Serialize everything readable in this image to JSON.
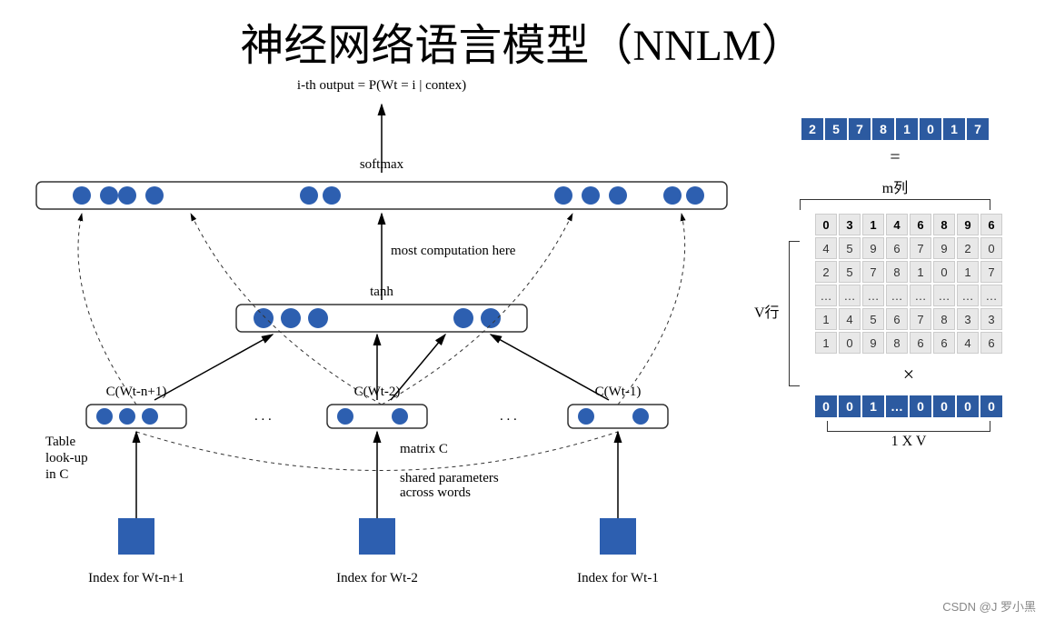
{
  "title": "神经网络语言模型（NNLM）",
  "diagram": {
    "output_label": "i-th output = P(Wt = i | contex)",
    "softmax_label": "softmax",
    "computation_label": "most computation here",
    "tanh_label": "tanh",
    "c_labels": [
      "C(Wt-n+1)",
      "C(Wt-2)",
      "C(Wt-1)"
    ],
    "lookup_label": "Table\nlook-up\nin C",
    "matrix_c_label": "matrix C",
    "shared_params_label": "shared parameters\nacross words",
    "index_labels": [
      "Index for Wt-n+1",
      "Index for Wt-2",
      "Index for Wt-1"
    ],
    "colors": {
      "node": "#2d5fb0",
      "box_fill": "#2d5fb0",
      "outline": "#333333",
      "arrow": "#000000"
    },
    "softmax_neurons": [
      50,
      80,
      100,
      130,
      300,
      325,
      580,
      610,
      640,
      700,
      725
    ],
    "tanh_neurons": [
      30,
      60,
      90,
      250,
      280
    ],
    "c_neurons": [
      [
        20,
        45,
        70
      ],
      [
        20,
        80
      ],
      [
        20,
        80
      ]
    ],
    "c_box_width": 110,
    "tanh_box_width": 320,
    "softmax_box_width": 760
  },
  "side": {
    "result_vector": [
      "2",
      "5",
      "7",
      "8",
      "1",
      "0",
      "1",
      "7"
    ],
    "eq_sign": "=",
    "m_label": "m列",
    "v_label": "V行",
    "matrix_rows": [
      {
        "bold": true,
        "cells": [
          "0",
          "3",
          "1",
          "4",
          "6",
          "8",
          "9",
          "6"
        ]
      },
      {
        "bold": false,
        "cells": [
          "4",
          "5",
          "9",
          "6",
          "7",
          "9",
          "2",
          "0"
        ]
      },
      {
        "bold": false,
        "cells": [
          "2",
          "5",
          "7",
          "8",
          "1",
          "0",
          "1",
          "7"
        ]
      },
      {
        "bold": false,
        "cells": [
          "…",
          "…",
          "…",
          "…",
          "…",
          "…",
          "…",
          "…"
        ]
      },
      {
        "bold": false,
        "cells": [
          "1",
          "4",
          "5",
          "6",
          "7",
          "8",
          "3",
          "3"
        ]
      },
      {
        "bold": false,
        "cells": [
          "1",
          "0",
          "9",
          "8",
          "6",
          "6",
          "4",
          "6"
        ]
      }
    ],
    "mult_sign": "×",
    "onehot_vector": [
      "0",
      "0",
      "1",
      "…",
      "0",
      "0",
      "0",
      "0"
    ],
    "onexv_label": "1 X V"
  },
  "watermark": "CSDN @J 罗小黑"
}
